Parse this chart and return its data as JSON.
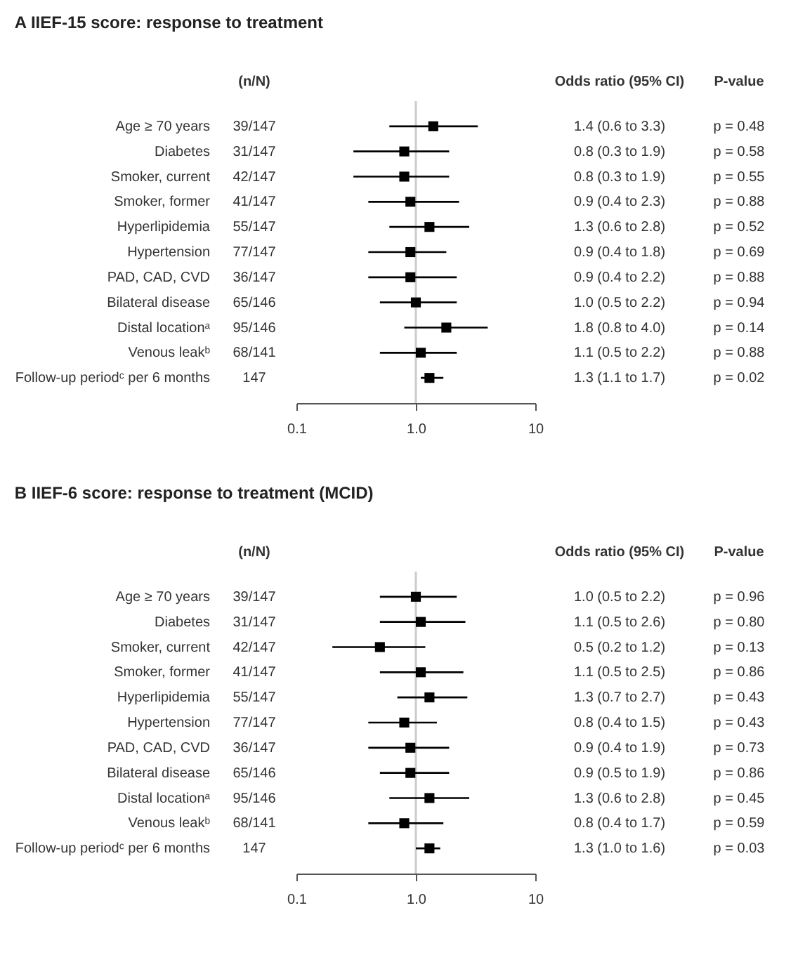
{
  "chart_data": [
    {
      "type": "scatter",
      "title": "A   IIEF-15 score: response to treatment",
      "orientation": "horizontal",
      "marker": "square",
      "grid": false,
      "log": "x",
      "categories": [
        "Age ≥ 70 years",
        "Diabetes",
        "Smoker, current",
        "Smoker, former",
        "Hyperlipidemia",
        "Hypertension",
        "PAD, CAD, CVD",
        "Bilateral disease",
        "Distal locationᵃ",
        "Venous leakᵇ",
        "Follow-up periodᶜ per 6 months"
      ],
      "series": [
        {
          "color": "#000000",
          "values": [
            1.4,
            0.8,
            0.8,
            0.9,
            1.3,
            0.9,
            0.9,
            1.0,
            1.8,
            1.1,
            1.3
          ],
          "errors": [
            [
              0.6,
              3.3
            ],
            [
              0.3,
              1.9
            ],
            [
              0.3,
              1.9
            ],
            [
              0.4,
              2.3
            ],
            [
              0.6,
              2.8
            ],
            [
              0.4,
              1.8
            ],
            [
              0.4,
              2.2
            ],
            [
              0.5,
              2.2
            ],
            [
              0.8,
              4.0
            ],
            [
              0.5,
              2.2
            ],
            [
              1.1,
              1.7
            ]
          ],
          "value_labels": [
            "1.4 (0.6 to 3.3)",
            "0.8 (0.3 to 1.9)",
            "0.8 (0.3 to 1.9)",
            "0.9 (0.4 to 2.3)",
            "1.3 (0.6 to 2.8)",
            "0.9 (0.4 to 1.8)",
            "0.9 (0.4 to 2.2)",
            "1.0 (0.5 to 2.2)",
            "1.8 (0.8 to 4.0)",
            "1.1 (0.5 to 2.2)",
            "1.3 (1.1 to 1.7)"
          ]
        }
      ],
      "xlim": [
        0.1,
        10
      ],
      "xticks": [
        0.1,
        {
          "value": 1,
          "label": "1.0"
        },
        10
      ],
      "ref_lines": [
        {
          "axis": "x",
          "value": 1,
          "color": "#cccccc"
        }
      ],
      "annotations": [
        "(n/N)",
        "Odds ratio (95% CI)",
        "P-value",
        "39/147",
        "p = 0.48",
        "31/147",
        "p = 0.58",
        "42/147",
        "p = 0.55",
        "41/147",
        "p = 0.88",
        "55/147",
        "p = 0.52",
        "77/147",
        "p = 0.69",
        "36/147",
        "p = 0.88",
        "65/146",
        "p = 0.94",
        "95/146",
        "p = 0.14",
        "68/141",
        "p = 0.88",
        "147",
        "p = 0.02"
      ]
    },
    {
      "type": "scatter",
      "title": "B   IIEF-6 score: response to treatment (MCID)",
      "orientation": "horizontal",
      "marker": "square",
      "grid": false,
      "log": "x",
      "categories": [
        "Age ≥ 70 years",
        "Diabetes",
        "Smoker, current",
        "Smoker, former",
        "Hyperlipidemia",
        "Hypertension",
        "PAD, CAD, CVD",
        "Bilateral disease",
        "Distal locationᵃ",
        "Venous leakᵇ",
        "Follow-up periodᶜ per 6 months"
      ],
      "series": [
        {
          "color": "#000000",
          "values": [
            1.0,
            1.1,
            0.5,
            1.1,
            1.3,
            0.8,
            0.9,
            0.9,
            1.3,
            0.8,
            1.3
          ],
          "errors": [
            [
              0.5,
              2.2
            ],
            [
              0.5,
              2.6
            ],
            [
              0.2,
              1.2
            ],
            [
              0.5,
              2.5
            ],
            [
              0.7,
              2.7
            ],
            [
              0.4,
              1.5
            ],
            [
              0.4,
              1.9
            ],
            [
              0.5,
              1.9
            ],
            [
              0.6,
              2.8
            ],
            [
              0.4,
              1.7
            ],
            [
              1.0,
              1.6
            ]
          ],
          "value_labels": [
            "1.0 (0.5 to 2.2)",
            "1.1 (0.5 to 2.6)",
            "0.5 (0.2 to 1.2)",
            "1.1 (0.5 to 2.5)",
            "1.3 (0.7 to 2.7)",
            "0.8 (0.4 to 1.5)",
            "0.9 (0.4 to 1.9)",
            "0.9 (0.5 to 1.9)",
            "1.3 (0.6 to 2.8)",
            "0.8 (0.4 to 1.7)",
            "1.3 (1.0 to 1.6)"
          ]
        }
      ],
      "xlim": [
        0.1,
        10
      ],
      "xticks": [
        0.1,
        {
          "value": 1,
          "label": "1.0"
        },
        10
      ],
      "ref_lines": [
        {
          "axis": "x",
          "value": 1,
          "color": "#cccccc"
        }
      ],
      "annotations": [
        "(n/N)",
        "Odds ratio (95% CI)",
        "P-value",
        "39/147",
        "p = 0.96",
        "31/147",
        "p = 0.80",
        "42/147",
        "p = 0.13",
        "41/147",
        "p = 0.86",
        "55/147",
        "p = 0.43",
        "77/147",
        "p = 0.43",
        "36/147",
        "p = 0.73",
        "65/146",
        "p = 0.86",
        "95/146",
        "p = 0.45",
        "68/141",
        "p = 0.59",
        "147",
        "p = 0.03"
      ]
    }
  ]
}
